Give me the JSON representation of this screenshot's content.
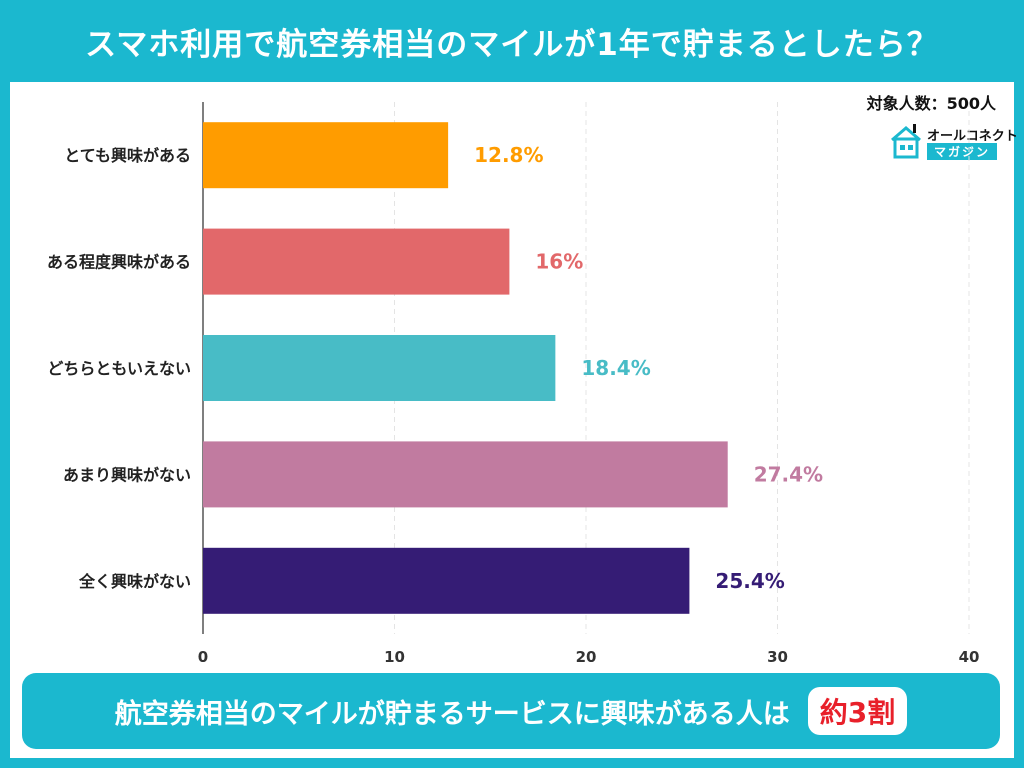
{
  "header": {
    "title": "スマホ利用で航空券相当のマイルが1年で貯まるとしたら？"
  },
  "sample_note": "対象人数：500人",
  "logo": {
    "top_text": "オールコネクト",
    "bottom_text": "マガジン",
    "icon": "house-icon"
  },
  "footer": {
    "text": "航空券相当のマイルが貯まるサービスに興味がある人は",
    "highlight": "約3割"
  },
  "colors": {
    "frame": "#1bb8cf",
    "highlight_text": "#e8202a"
  },
  "chart_data": {
    "type": "bar",
    "orientation": "horizontal",
    "categories": [
      "とても興味がある",
      "ある程度興味がある",
      "どちらともいえない",
      "あまり興味がない",
      "全く興味がない"
    ],
    "values": [
      12.8,
      16,
      18.4,
      27.4,
      25.4
    ],
    "value_labels": [
      "12.8%",
      "16%",
      "18.4%",
      "27.4%",
      "25.4%"
    ],
    "colors": [
      "#ff9c00",
      "#e2686a",
      "#48bcc6",
      "#c17ba0",
      "#351c75"
    ],
    "xlim": [
      0,
      40
    ],
    "xticks": [
      "0",
      "10",
      "20",
      "30",
      "40"
    ],
    "grid": true,
    "title": "",
    "xlabel": "",
    "ylabel": ""
  }
}
